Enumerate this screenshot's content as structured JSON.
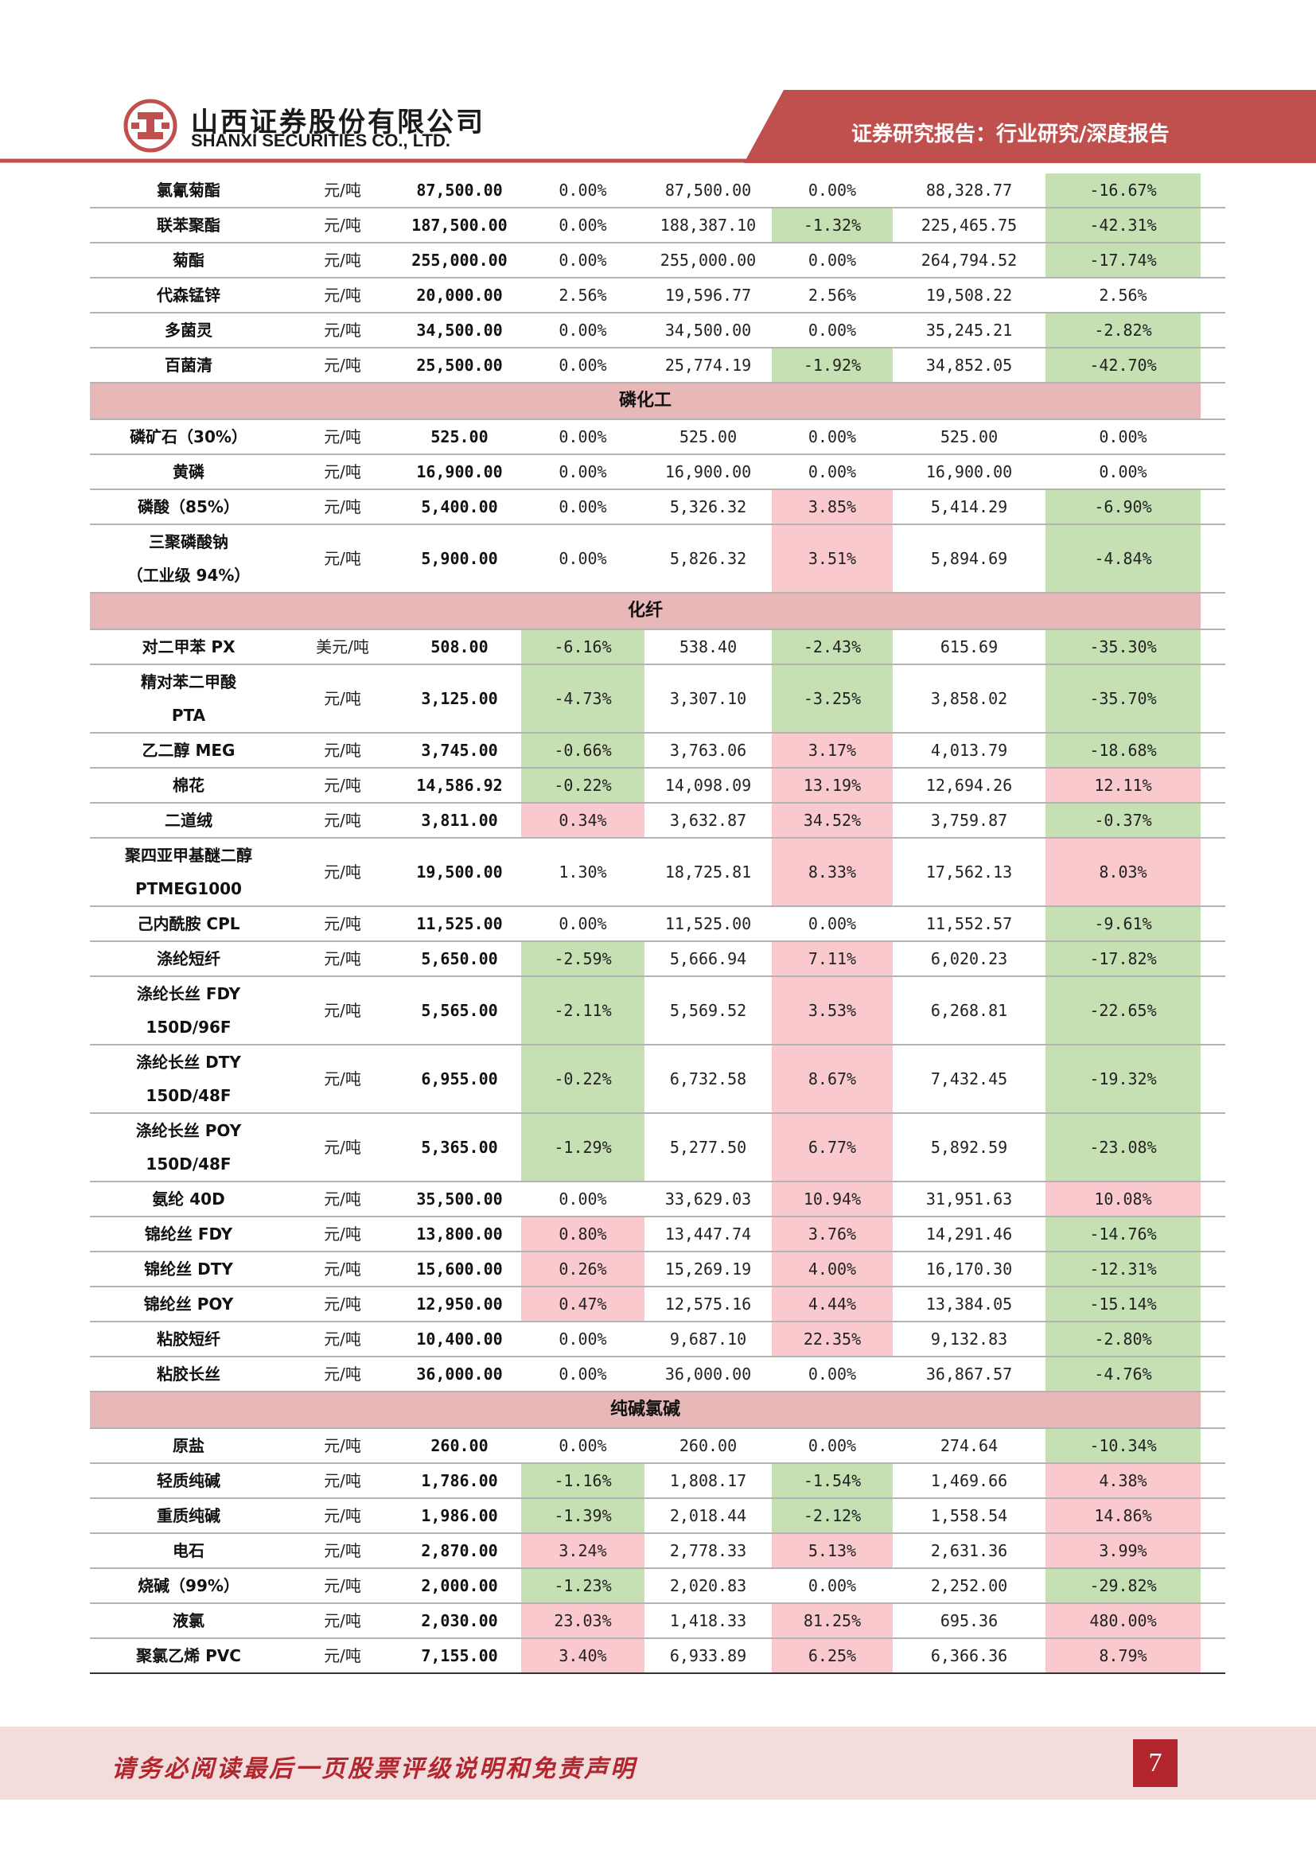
{
  "header": {
    "company_cn": "山西证券股份有限公司",
    "company_en": "SHANXI SECURITIES CO., LTD.",
    "report_type": "证券研究报告：行业研究/深度报告",
    "brand_color": "#c0504d"
  },
  "colors": {
    "up": "#f9c9ce",
    "down": "#c6e0b4",
    "section": "#e8b8b8"
  },
  "table": {
    "rows": [
      {
        "type": "item",
        "name": "氯氰菊酯",
        "unit": "元/吨",
        "price": "87,500.00",
        "c1": "0.00%",
        "v1": "87,500.00",
        "c2": "0.00%",
        "v2": "88,328.77",
        "c3": "-16.67%",
        "h1": "",
        "h2": "",
        "h3": "g"
      },
      {
        "type": "item",
        "name": "联苯聚酯",
        "unit": "元/吨",
        "price": "187,500.00",
        "c1": "0.00%",
        "v1": "188,387.10",
        "c2": "-1.32%",
        "v2": "225,465.75",
        "c3": "-42.31%",
        "h1": "",
        "h2": "g",
        "h3": "g"
      },
      {
        "type": "item",
        "name": "菊酯",
        "unit": "元/吨",
        "price": "255,000.00",
        "c1": "0.00%",
        "v1": "255,000.00",
        "c2": "0.00%",
        "v2": "264,794.52",
        "c3": "-17.74%",
        "h1": "",
        "h2": "",
        "h3": "g"
      },
      {
        "type": "item",
        "name": "代森锰锌",
        "unit": "元/吨",
        "price": "20,000.00",
        "c1": "2.56%",
        "v1": "19,596.77",
        "c2": "2.56%",
        "v2": "19,508.22",
        "c3": "2.56%",
        "h1": "",
        "h2": "",
        "h3": ""
      },
      {
        "type": "item",
        "name": "多菌灵",
        "unit": "元/吨",
        "price": "34,500.00",
        "c1": "0.00%",
        "v1": "34,500.00",
        "c2": "0.00%",
        "v2": "35,245.21",
        "c3": "-2.82%",
        "h1": "",
        "h2": "",
        "h3": "g"
      },
      {
        "type": "item",
        "name": "百菌清",
        "unit": "元/吨",
        "price": "25,500.00",
        "c1": "0.00%",
        "v1": "25,774.19",
        "c2": "-1.92%",
        "v2": "34,852.05",
        "c3": "-42.70%",
        "h1": "",
        "h2": "g",
        "h3": "g"
      },
      {
        "type": "section",
        "name": "磷化工"
      },
      {
        "type": "item",
        "name": "磷矿石（30%）",
        "unit": "元/吨",
        "price": "525.00",
        "c1": "0.00%",
        "v1": "525.00",
        "c2": "0.00%",
        "v2": "525.00",
        "c3": "0.00%",
        "h1": "",
        "h2": "",
        "h3": ""
      },
      {
        "type": "item",
        "name": "黄磷",
        "unit": "元/吨",
        "price": "16,900.00",
        "c1": "0.00%",
        "v1": "16,900.00",
        "c2": "0.00%",
        "v2": "16,900.00",
        "c3": "0.00%",
        "h1": "",
        "h2": "",
        "h3": ""
      },
      {
        "type": "item",
        "name": "磷酸（85%）",
        "unit": "元/吨",
        "price": "5,400.00",
        "c1": "0.00%",
        "v1": "5,326.32",
        "c2": "3.85%",
        "v2": "5,414.29",
        "c3": "-6.90%",
        "h1": "",
        "h2": "r",
        "h3": "g"
      },
      {
        "type": "item2",
        "name": "三聚磷酸钠",
        "name2": "（工业级 94%）",
        "unit": "元/吨",
        "price": "5,900.00",
        "c1": "0.00%",
        "v1": "5,826.32",
        "c2": "3.51%",
        "v2": "5,894.69",
        "c3": "-4.84%",
        "h1": "",
        "h2": "r",
        "h3": "g"
      },
      {
        "type": "section",
        "name": "化纤"
      },
      {
        "type": "item",
        "name": "对二甲苯 PX",
        "unit": "美元/吨",
        "price": "508.00",
        "c1": "-6.16%",
        "v1": "538.40",
        "c2": "-2.43%",
        "v2": "615.69",
        "c3": "-35.30%",
        "h1": "g",
        "h2": "g",
        "h3": "g"
      },
      {
        "type": "item2",
        "name": "精对苯二甲酸",
        "name2": "PTA",
        "unit": "元/吨",
        "price": "3,125.00",
        "c1": "-4.73%",
        "v1": "3,307.10",
        "c2": "-3.25%",
        "v2": "3,858.02",
        "c3": "-35.70%",
        "h1": "g",
        "h2": "g",
        "h3": "g"
      },
      {
        "type": "item",
        "name": "乙二醇 MEG",
        "unit": "元/吨",
        "price": "3,745.00",
        "c1": "-0.66%",
        "v1": "3,763.06",
        "c2": "3.17%",
        "v2": "4,013.79",
        "c3": "-18.68%",
        "h1": "g",
        "h2": "r",
        "h3": "g"
      },
      {
        "type": "item",
        "name": "棉花",
        "unit": "元/吨",
        "price": "14,586.92",
        "c1": "-0.22%",
        "v1": "14,098.09",
        "c2": "13.19%",
        "v2": "12,694.26",
        "c3": "12.11%",
        "h1": "g",
        "h2": "r",
        "h3": "r"
      },
      {
        "type": "item",
        "name": "二道绒",
        "unit": "元/吨",
        "price": "3,811.00",
        "c1": "0.34%",
        "v1": "3,632.87",
        "c2": "34.52%",
        "v2": "3,759.87",
        "c3": "-0.37%",
        "h1": "r",
        "h2": "r",
        "h3": "g"
      },
      {
        "type": "item2",
        "name": "聚四亚甲基醚二醇",
        "name2": "PTMEG1000",
        "unit": "元/吨",
        "price": "19,500.00",
        "c1": "1.30%",
        "v1": "18,725.81",
        "c2": "8.33%",
        "v2": "17,562.13",
        "c3": "8.03%",
        "h1": "",
        "h2": "r",
        "h3": "r"
      },
      {
        "type": "item",
        "name": "己内酰胺 CPL",
        "unit": "元/吨",
        "price": "11,525.00",
        "c1": "0.00%",
        "v1": "11,525.00",
        "c2": "0.00%",
        "v2": "11,552.57",
        "c3": "-9.61%",
        "h1": "",
        "h2": "",
        "h3": "g"
      },
      {
        "type": "item",
        "name": "涤纶短纤",
        "unit": "元/吨",
        "price": "5,650.00",
        "c1": "-2.59%",
        "v1": "5,666.94",
        "c2": "7.11%",
        "v2": "6,020.23",
        "c3": "-17.82%",
        "h1": "g",
        "h2": "r",
        "h3": "g"
      },
      {
        "type": "item2",
        "name": "涤纶长丝 FDY",
        "name2": "150D/96F",
        "unit": "元/吨",
        "price": "5,565.00",
        "c1": "-2.11%",
        "v1": "5,569.52",
        "c2": "3.53%",
        "v2": "6,268.81",
        "c3": "-22.65%",
        "h1": "g",
        "h2": "r",
        "h3": "g"
      },
      {
        "type": "item2",
        "name": "涤纶长丝 DTY",
        "name2": "150D/48F",
        "unit": "元/吨",
        "price": "6,955.00",
        "c1": "-0.22%",
        "v1": "6,732.58",
        "c2": "8.67%",
        "v2": "7,432.45",
        "c3": "-19.32%",
        "h1": "g",
        "h2": "r",
        "h3": "g"
      },
      {
        "type": "item2",
        "name": "涤纶长丝 POY",
        "name2": "150D/48F",
        "unit": "元/吨",
        "price": "5,365.00",
        "c1": "-1.29%",
        "v1": "5,277.50",
        "c2": "6.77%",
        "v2": "5,892.59",
        "c3": "-23.08%",
        "h1": "g",
        "h2": "r",
        "h3": "g"
      },
      {
        "type": "item",
        "name": "氨纶 40D",
        "unit": "元/吨",
        "price": "35,500.00",
        "c1": "0.00%",
        "v1": "33,629.03",
        "c2": "10.94%",
        "v2": "31,951.63",
        "c3": "10.08%",
        "h1": "",
        "h2": "r",
        "h3": "r"
      },
      {
        "type": "item",
        "name": "锦纶丝 FDY",
        "unit": "元/吨",
        "price": "13,800.00",
        "c1": "0.80%",
        "v1": "13,447.74",
        "c2": "3.76%",
        "v2": "14,291.46",
        "c3": "-14.76%",
        "h1": "r",
        "h2": "r",
        "h3": "g"
      },
      {
        "type": "item",
        "name": "锦纶丝 DTY",
        "unit": "元/吨",
        "price": "15,600.00",
        "c1": "0.26%",
        "v1": "15,269.19",
        "c2": "4.00%",
        "v2": "16,170.30",
        "c3": "-12.31%",
        "h1": "r",
        "h2": "r",
        "h3": "g"
      },
      {
        "type": "item",
        "name": "锦纶丝 POY",
        "unit": "元/吨",
        "price": "12,950.00",
        "c1": "0.47%",
        "v1": "12,575.16",
        "c2": "4.44%",
        "v2": "13,384.05",
        "c3": "-15.14%",
        "h1": "r",
        "h2": "r",
        "h3": "g"
      },
      {
        "type": "item",
        "name": "粘胶短纤",
        "unit": "元/吨",
        "price": "10,400.00",
        "c1": "0.00%",
        "v1": "9,687.10",
        "c2": "22.35%",
        "v2": "9,132.83",
        "c3": "-2.80%",
        "h1": "",
        "h2": "r",
        "h3": "g"
      },
      {
        "type": "item",
        "name": "粘胶长丝",
        "unit": "元/吨",
        "price": "36,000.00",
        "c1": "0.00%",
        "v1": "36,000.00",
        "c2": "0.00%",
        "v2": "36,867.57",
        "c3": "-4.76%",
        "h1": "",
        "h2": "",
        "h3": "g"
      },
      {
        "type": "section",
        "name": "纯碱氯碱"
      },
      {
        "type": "item",
        "name": "原盐",
        "unit": "元/吨",
        "price": "260.00",
        "c1": "0.00%",
        "v1": "260.00",
        "c2": "0.00%",
        "v2": "274.64",
        "c3": "-10.34%",
        "h1": "",
        "h2": "",
        "h3": "g"
      },
      {
        "type": "item",
        "name": "轻质纯碱",
        "unit": "元/吨",
        "price": "1,786.00",
        "c1": "-1.16%",
        "v1": "1,808.17",
        "c2": "-1.54%",
        "v2": "1,469.66",
        "c3": "4.38%",
        "h1": "g",
        "h2": "g",
        "h3": "r"
      },
      {
        "type": "item",
        "name": "重质纯碱",
        "unit": "元/吨",
        "price": "1,986.00",
        "c1": "-1.39%",
        "v1": "2,018.44",
        "c2": "-2.12%",
        "v2": "1,558.54",
        "c3": "14.86%",
        "h1": "g",
        "h2": "g",
        "h3": "r"
      },
      {
        "type": "item",
        "name": "电石",
        "unit": "元/吨",
        "price": "2,870.00",
        "c1": "3.24%",
        "v1": "2,778.33",
        "c2": "5.13%",
        "v2": "2,631.36",
        "c3": "3.99%",
        "h1": "r",
        "h2": "r",
        "h3": "r"
      },
      {
        "type": "item",
        "name": "烧碱（99%）",
        "unit": "元/吨",
        "price": "2,000.00",
        "c1": "-1.23%",
        "v1": "2,020.83",
        "c2": "0.00%",
        "v2": "2,252.00",
        "c3": "-29.82%",
        "h1": "g",
        "h2": "",
        "h3": "g"
      },
      {
        "type": "item",
        "name": "液氯",
        "unit": "元/吨",
        "price": "2,030.00",
        "c1": "23.03%",
        "v1": "1,418.33",
        "c2": "81.25%",
        "v2": "695.36",
        "c3": "480.00%",
        "h1": "r",
        "h2": "r",
        "h3": "r"
      },
      {
        "type": "item",
        "name": "聚氯乙烯 PVC",
        "unit": "元/吨",
        "price": "7,155.00",
        "c1": "3.40%",
        "v1": "6,933.89",
        "c2": "6.25%",
        "v2": "6,366.36",
        "c3": "8.79%",
        "h1": "r",
        "h2": "r",
        "h3": "r"
      }
    ]
  },
  "footer": {
    "disclaimer": "请务必阅读最后一页股票评级说明和免责声明",
    "page_number": "7"
  }
}
